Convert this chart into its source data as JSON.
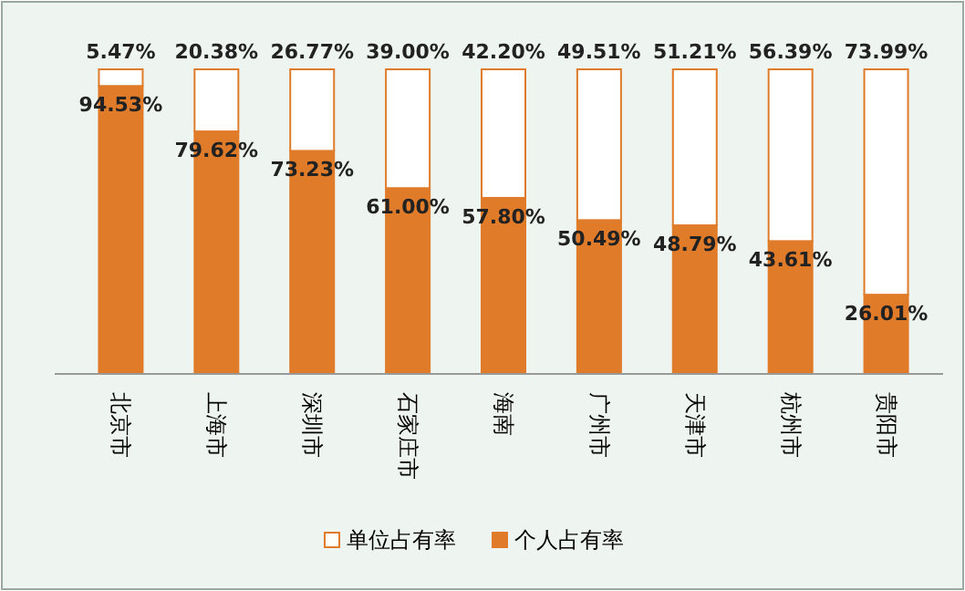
{
  "chart_data": {
    "type": "bar",
    "stacked": true,
    "categories": [
      "北京市",
      "上海市",
      "深圳市",
      "石家庄市",
      "海南",
      "广州市",
      "天津市",
      "杭州市",
      "贵阳市"
    ],
    "series": [
      {
        "name": "个人占有率",
        "color": "#e07b2a",
        "values": [
          94.53,
          79.62,
          73.23,
          61.0,
          57.8,
          50.49,
          48.79,
          43.61,
          26.01
        ],
        "value_labels": [
          "94.53%",
          "79.62%",
          "73.23%",
          "61.00%",
          "57.80%",
          "50.49%",
          "48.79%",
          "43.61%",
          "26.01%"
        ]
      },
      {
        "name": "单位占有率",
        "color": "#ffffff",
        "values": [
          5.47,
          20.38,
          26.77,
          39.0,
          42.2,
          49.51,
          51.21,
          56.39,
          73.99
        ],
        "value_labels": [
          "5.47%",
          "20.38%",
          "26.77%",
          "39.00%",
          "42.20%",
          "49.51%",
          "51.21%",
          "56.39%",
          "73.99%"
        ]
      }
    ],
    "ylim": [
      0,
      100
    ],
    "tick_labels": "x",
    "legend": "bottom"
  }
}
